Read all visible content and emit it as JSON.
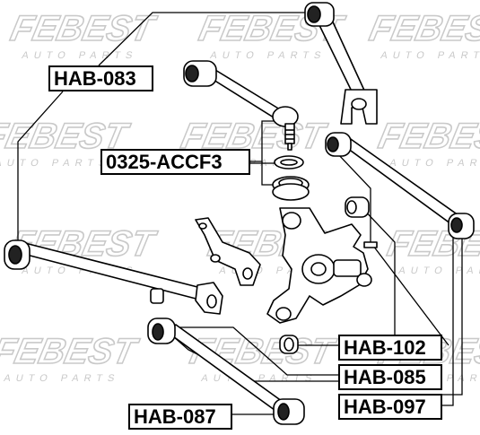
{
  "watermark": {
    "brand": "FEBEST",
    "subtitle": "AUTO PARTS",
    "color": "#c9c9c9"
  },
  "parts": {
    "hab083": "HAB-083",
    "accf3": "0325-ACCF3",
    "hab102": "HAB-102",
    "hab085": "HAB-085",
    "hab097": "HAB-097",
    "hab087": "HAB-087"
  },
  "colors": {
    "line": "#000000",
    "part_fill": "#ffffff",
    "bushing_dark": "#1a1a1a"
  }
}
